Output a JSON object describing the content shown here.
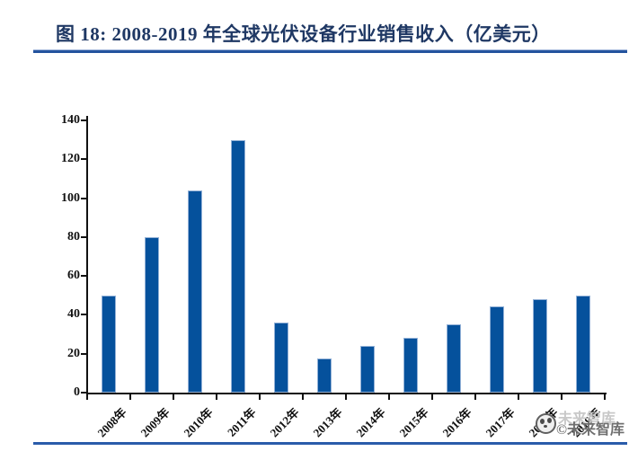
{
  "header": {
    "title": "图 18: 2008-2019 年全球光伏设备行业销售收入（亿美元）",
    "title_color": "#1F3864",
    "rule_color": "#24549E"
  },
  "chart_data": {
    "type": "bar",
    "title": "图 18: 2008-2019 年全球光伏设备行业销售收入（亿美元）",
    "categories": [
      "2008年",
      "2009年",
      "2010年",
      "2011年",
      "2012年",
      "2013年",
      "2014年",
      "2015年",
      "2016年",
      "2017年",
      "2018年",
      "2019年"
    ],
    "values": [
      50,
      80,
      104,
      130,
      36,
      17.5,
      24,
      28,
      35,
      44.5,
      48,
      50
    ],
    "xlabel": "",
    "ylabel": "",
    "ylim": [
      0,
      140
    ],
    "yticks": [
      0,
      20,
      40,
      60,
      80,
      100,
      120,
      140
    ],
    "grid": "off",
    "legend": "none",
    "bar_color": "#05519C",
    "bar_border_color": "#93B1D7",
    "axis_color": "#111111"
  },
  "watermark": {
    "logo_icon": "panda-logo",
    "shadow_text": "未来智库",
    "text": "©未来智库",
    "text_color": "#6F6F6F",
    "shadow_color": "#C8C8C8"
  }
}
